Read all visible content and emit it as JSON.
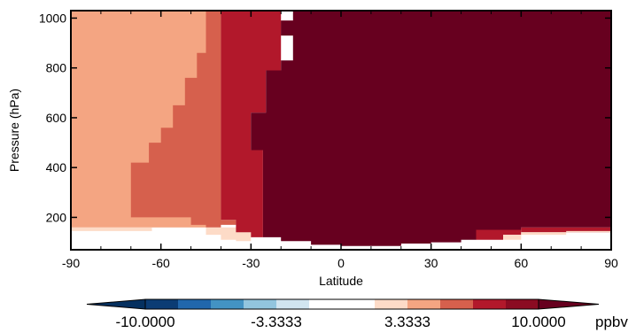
{
  "chart_data": {
    "type": "heatmap",
    "title": "",
    "xlabel": "Latitude",
    "ylabel": "Pressure (hPa)",
    "xlim": [
      -90,
      90
    ],
    "ylim": [
      1030,
      70
    ],
    "y_reversed": true,
    "xticks": [
      -90,
      -60,
      -30,
      0,
      30,
      60,
      90
    ],
    "xtick_labels": [
      "-90",
      "-60",
      "-30",
      "0",
      "30",
      "60",
      "90"
    ],
    "yticks": [
      200,
      400,
      600,
      800,
      1000
    ],
    "ytick_labels": [
      "200",
      "400",
      "600",
      "800",
      "1000"
    ],
    "grid": false,
    "colorbar": {
      "unit": "ppbv",
      "range": [
        -13.3333,
        13.3333
      ],
      "tick_labels": [
        "-10.0000",
        "-3.3333",
        "3.3333",
        "10.0000"
      ],
      "tick_values": [
        -10.0,
        -3.3333,
        3.3333,
        10.0
      ],
      "extend": "both",
      "levels": [
        {
          "from": -13.3333,
          "to": -10.0,
          "color": "#05305f"
        },
        {
          "from": -10.0,
          "to": -8.3333,
          "color": "#0b3c74"
        },
        {
          "from": -8.3333,
          "to": -6.6667,
          "color": "#2167ac"
        },
        {
          "from": -6.6667,
          "to": -5.0,
          "color": "#4393c3"
        },
        {
          "from": -5.0,
          "to": -3.3333,
          "color": "#92c5de"
        },
        {
          "from": -3.3333,
          "to": -1.6667,
          "color": "#d1e5f0"
        },
        {
          "from": -1.6667,
          "to": 1.6667,
          "color": "#ffffff"
        },
        {
          "from": 1.6667,
          "to": 3.3333,
          "color": "#fddbc7"
        },
        {
          "from": 3.3333,
          "to": 5.0,
          "color": "#f4a582"
        },
        {
          "from": 5.0,
          "to": 6.6667,
          "color": "#d6604d"
        },
        {
          "from": 6.6667,
          "to": 8.3333,
          "color": "#b2182b"
        },
        {
          "from": 8.3333,
          "to": 10.0,
          "color": "#8b0b22"
        },
        {
          "from": 10.0,
          "to": 13.3333,
          "color": "#67001f"
        }
      ]
    },
    "level_colors": {
      "white": "#ffffff",
      "light": "#fddbc7",
      "salmon": "#f4a582",
      "mid": "#d6604d",
      "red": "#b2182b",
      "dark": "#67001f"
    },
    "regions": [
      {
        "level": "light",
        "polygon": [
          [
            -90,
            145
          ],
          [
            -63,
            145
          ],
          [
            -63,
            165
          ],
          [
            -45,
            165
          ],
          [
            -45,
            130
          ],
          [
            -40,
            130
          ],
          [
            -40,
            110
          ],
          [
            -35,
            110
          ],
          [
            -35,
            105
          ],
          [
            -30,
            105
          ],
          [
            -30,
            160
          ],
          [
            -90,
            160
          ]
        ]
      },
      {
        "level": "salmon",
        "polygon": [
          [
            -90,
            160
          ],
          [
            -45,
            160
          ],
          [
            -45,
            1030
          ],
          [
            -90,
            1030
          ]
        ]
      },
      {
        "level": "mid",
        "polygon": [
          [
            -70,
            200
          ],
          [
            -50,
            200
          ],
          [
            -50,
            170
          ],
          [
            -45,
            170
          ],
          [
            -45,
            160
          ],
          [
            -40,
            160
          ],
          [
            -40,
            170
          ],
          [
            -35,
            170
          ],
          [
            -35,
            190
          ],
          [
            -40,
            190
          ],
          [
            -40,
            1030
          ],
          [
            -45,
            1030
          ],
          [
            -45,
            860
          ],
          [
            -48,
            860
          ],
          [
            -48,
            760
          ],
          [
            -52,
            760
          ],
          [
            -52,
            650
          ],
          [
            -56,
            650
          ],
          [
            -56,
            560
          ],
          [
            -60,
            560
          ],
          [
            -60,
            500
          ],
          [
            -64,
            500
          ],
          [
            -64,
            420
          ],
          [
            -70,
            420
          ]
        ]
      },
      {
        "level": "red",
        "polygon": [
          [
            -40,
            190
          ],
          [
            -35,
            190
          ],
          [
            -35,
            140
          ],
          [
            -30,
            140
          ],
          [
            -30,
            120
          ],
          [
            -26,
            120
          ],
          [
            -26,
            470
          ],
          [
            -30,
            470
          ],
          [
            -30,
            620
          ],
          [
            -25,
            620
          ],
          [
            -25,
            790
          ],
          [
            -20,
            790
          ],
          [
            -20,
            1030
          ],
          [
            -40,
            1030
          ]
        ]
      },
      {
        "level": "red",
        "polygon": [
          [
            -20,
            930
          ],
          [
            -16,
            930
          ],
          [
            -16,
            990
          ],
          [
            -20,
            990
          ]
        ]
      },
      {
        "level": "red",
        "polygon": [
          [
            5,
            88
          ],
          [
            20,
            88
          ],
          [
            20,
            110
          ],
          [
            25,
            110
          ],
          [
            25,
            140
          ],
          [
            5,
            140
          ]
        ]
      },
      {
        "level": "red",
        "polygon": [
          [
            45,
            110
          ],
          [
            54,
            110
          ],
          [
            54,
            130
          ],
          [
            60,
            130
          ],
          [
            60,
            150
          ],
          [
            45,
            150
          ]
        ]
      },
      {
        "level": "red",
        "polygon": [
          [
            60,
            140
          ],
          [
            90,
            140
          ],
          [
            90,
            160
          ],
          [
            60,
            160
          ]
        ]
      },
      {
        "level": "light",
        "polygon": [
          [
            54,
            110
          ],
          [
            60,
            110
          ],
          [
            60,
            130
          ],
          [
            54,
            130
          ]
        ]
      },
      {
        "level": "light",
        "polygon": [
          [
            60,
            130
          ],
          [
            75,
            130
          ],
          [
            75,
            140
          ],
          [
            60,
            140
          ]
        ]
      },
      {
        "level": "light",
        "polygon": [
          [
            75,
            140
          ],
          [
            90,
            140
          ],
          [
            90,
            145
          ],
          [
            75,
            145
          ]
        ]
      },
      {
        "level": "dark",
        "polygon": [
          [
            -26,
            120
          ],
          [
            -20,
            120
          ],
          [
            -20,
            105
          ],
          [
            -10,
            105
          ],
          [
            -10,
            90
          ],
          [
            0,
            90
          ],
          [
            0,
            85
          ],
          [
            10,
            85
          ],
          [
            10,
            85
          ],
          [
            20,
            85
          ],
          [
            20,
            95
          ],
          [
            30,
            95
          ],
          [
            30,
            100
          ],
          [
            40,
            100
          ],
          [
            40,
            110
          ],
          [
            45,
            110
          ],
          [
            45,
            150
          ],
          [
            60,
            150
          ],
          [
            60,
            160
          ],
          [
            90,
            160
          ],
          [
            90,
            1030
          ],
          [
            -16,
            1030
          ],
          [
            -16,
            990
          ],
          [
            -20,
            990
          ],
          [
            -20,
            930
          ],
          [
            -16,
            930
          ],
          [
            -16,
            830
          ],
          [
            -20,
            830
          ],
          [
            -20,
            790
          ],
          [
            -25,
            790
          ],
          [
            -25,
            620
          ],
          [
            -30,
            620
          ],
          [
            -30,
            470
          ],
          [
            -26,
            470
          ]
        ]
      }
    ]
  }
}
